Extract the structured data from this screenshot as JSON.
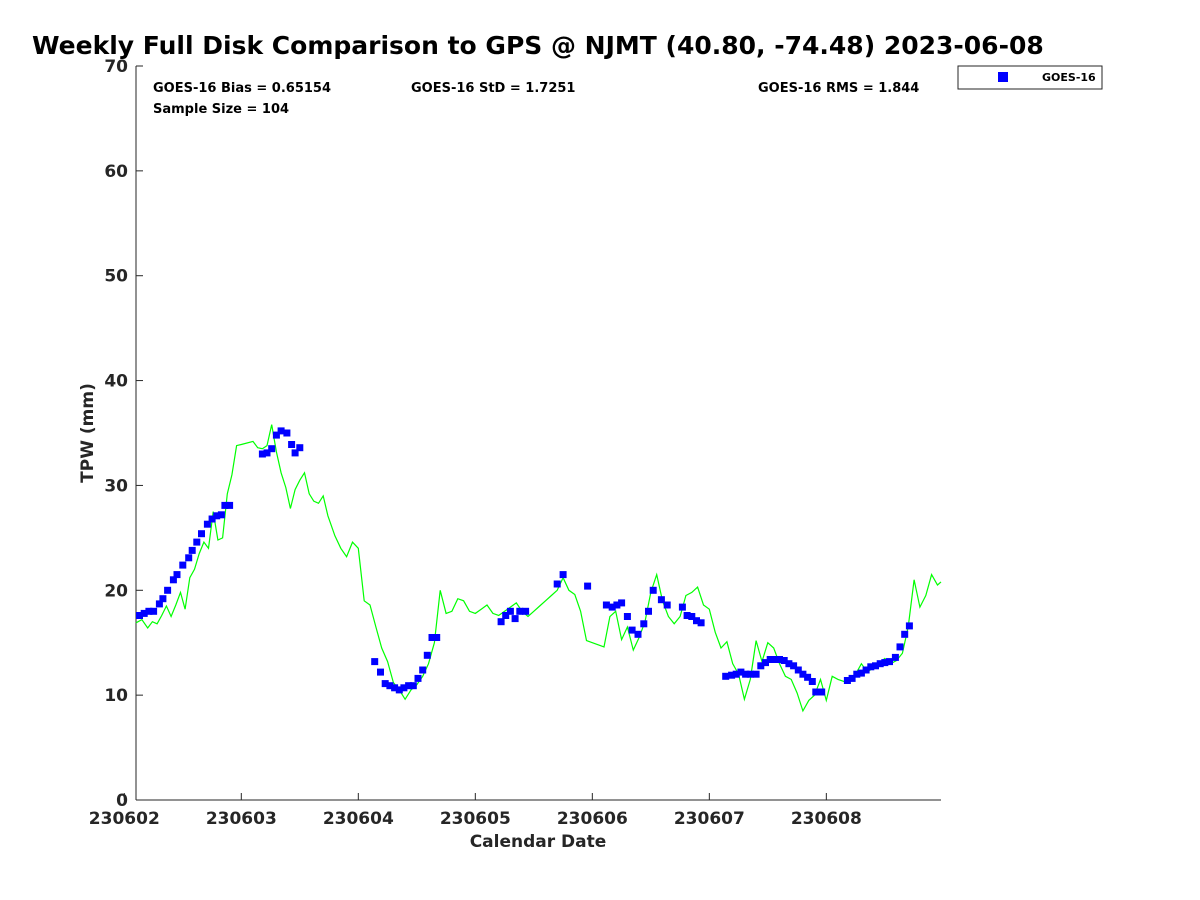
{
  "chart_data": {
    "type": "scatter",
    "title": "Weekly Full Disk Comparison to GPS @ NJMT (40.80, -74.48) 2023-06-08",
    "xlabel": "Calendar Date",
    "ylabel": "TPW (mm)",
    "xlim": [
      230602.1,
      230608.98
    ],
    "ylim": [
      0,
      70
    ],
    "x_ticks": [
      230602,
      230603,
      230604,
      230605,
      230606,
      230607,
      230608
    ],
    "y_ticks": [
      0,
      10,
      20,
      30,
      40,
      50,
      60,
      70
    ],
    "grid": false,
    "legend_position": "top-right",
    "stats": {
      "bias": "GOES-16 Bias = 0.65154",
      "std": "GOES-16 StD = 1.7251",
      "rms": "GOES-16 RMS = 1.844",
      "sample_size": "Sample Size = 104"
    },
    "series": [
      {
        "name": "GOES-16",
        "marker": "square",
        "color": "#0000ff",
        "x": [
          230602.13,
          230602.17,
          230602.21,
          230602.25,
          230602.3,
          230602.33,
          230602.37,
          230602.42,
          230602.45,
          230602.5,
          230602.55,
          230602.58,
          230602.62,
          230602.66,
          230602.71,
          230602.75,
          230602.79,
          230602.83,
          230602.86,
          230602.9,
          230603.18,
          230603.22,
          230603.26,
          230603.3,
          230603.34,
          230603.39,
          230603.43,
          230603.46,
          230603.5,
          230604.14,
          230604.19,
          230604.23,
          230604.27,
          230604.31,
          230604.35,
          230604.39,
          230604.43,
          230604.47,
          230604.51,
          230604.55,
          230604.59,
          230604.63,
          230604.67,
          230605.22,
          230605.26,
          230605.3,
          230605.34,
          230605.38,
          230605.43,
          230605.7,
          230605.75,
          230605.96,
          230606.12,
          230606.17,
          230606.21,
          230606.25,
          230606.3,
          230606.34,
          230606.39,
          230606.44,
          230606.48,
          230606.52,
          230606.59,
          230606.64,
          230606.77,
          230606.81,
          230606.85,
          230606.89,
          230606.93,
          230607.14,
          230607.19,
          230607.23,
          230607.27,
          230607.31,
          230607.35,
          230607.4,
          230607.44,
          230607.48,
          230607.52,
          230607.56,
          230607.6,
          230607.64,
          230607.68,
          230607.72,
          230607.76,
          230607.8,
          230607.84,
          230607.88,
          230607.91,
          230607.96,
          230608.18,
          230608.22,
          230608.26,
          230608.3,
          230608.34,
          230608.38,
          230608.42,
          230608.46,
          230608.5,
          230608.54,
          230608.59,
          230608.63,
          230608.67,
          230608.71
        ],
        "values": [
          17.6,
          17.8,
          18.0,
          18.0,
          18.7,
          19.2,
          20.0,
          21.0,
          21.5,
          22.4,
          23.1,
          23.8,
          24.6,
          25.4,
          26.3,
          26.8,
          27.1,
          27.2,
          28.1,
          28.1,
          33.0,
          33.1,
          33.5,
          34.8,
          35.2,
          35.0,
          33.9,
          33.1,
          33.6,
          13.2,
          12.2,
          11.1,
          10.9,
          10.7,
          10.5,
          10.7,
          10.9,
          10.9,
          11.6,
          12.4,
          13.8,
          15.5,
          15.5,
          17.0,
          17.6,
          18.0,
          17.3,
          18.0,
          18.0,
          20.6,
          21.5,
          20.4,
          18.6,
          18.4,
          18.6,
          18.8,
          17.5,
          16.2,
          15.8,
          16.8,
          18.0,
          20.0,
          19.1,
          18.6,
          18.4,
          17.6,
          17.5,
          17.1,
          16.9,
          11.8,
          11.9,
          12.0,
          12.2,
          12.0,
          12.0,
          12.0,
          12.8,
          13.1,
          13.4,
          13.4,
          13.4,
          13.3,
          13.0,
          12.8,
          12.4,
          12.0,
          11.7,
          11.3,
          10.3,
          10.3,
          11.4,
          11.6,
          12.0,
          12.1,
          12.4,
          12.7,
          12.8,
          13.0,
          13.1,
          13.2,
          13.6,
          14.6,
          15.8,
          16.6
        ]
      },
      {
        "name": "",
        "marker": "line",
        "color": "#00ff00",
        "x": [
          230602.1,
          230602.15,
          230602.2,
          230602.24,
          230602.28,
          230602.32,
          230602.36,
          230602.4,
          230602.44,
          230602.48,
          230602.52,
          230602.56,
          230602.6,
          230602.64,
          230602.68,
          230602.72,
          230602.76,
          230602.8,
          230602.84,
          230602.88,
          230602.92,
          230602.96,
          230603.0,
          230603.1,
          230603.14,
          230603.18,
          230603.22,
          230603.26,
          230603.3,
          230603.34,
          230603.38,
          230603.42,
          230603.46,
          230603.5,
          230603.54,
          230603.58,
          230603.62,
          230603.66,
          230603.7,
          230603.74,
          230603.8,
          230603.85,
          230603.9,
          230603.95,
          230604.0,
          230604.05,
          230604.1,
          230604.15,
          230604.2,
          230604.25,
          230604.3,
          230604.35,
          230604.4,
          230604.45,
          230604.5,
          230604.55,
          230604.6,
          230604.65,
          230604.7,
          230604.75,
          230604.8,
          230604.85,
          230604.9,
          230604.95,
          230605.0,
          230605.05,
          230605.1,
          230605.15,
          230605.2,
          230605.25,
          230605.3,
          230605.35,
          230605.4,
          230605.45,
          230605.5,
          230605.55,
          230605.6,
          230605.65,
          230605.7,
          230605.75,
          230605.8,
          230605.85,
          230605.9,
          230605.95,
          230606.0,
          230606.05,
          230606.1,
          230606.15,
          230606.2,
          230606.25,
          230606.3,
          230606.35,
          230606.4,
          230606.45,
          230606.5,
          230606.55,
          230606.6,
          230606.65,
          230606.7,
          230606.75,
          230606.8,
          230606.85,
          230606.9,
          230606.95,
          230607.0,
          230607.05,
          230607.1,
          230607.15,
          230607.2,
          230607.25,
          230607.3,
          230607.35,
          230607.4,
          230607.45,
          230607.5,
          230607.55,
          230607.6,
          230607.65,
          230607.7,
          230607.75,
          230607.8,
          230607.85,
          230607.9,
          230607.95,
          230608.0,
          230608.05,
          230608.1,
          230608.15,
          230608.2,
          230608.25,
          230608.3,
          230608.35,
          230608.4,
          230608.45,
          230608.5,
          230608.55,
          230608.6,
          230608.65,
          230608.7,
          230608.75,
          230608.8,
          230608.85,
          230608.9,
          230608.95,
          230608.98
        ],
        "values": [
          16.9,
          17.2,
          16.4,
          17.0,
          16.8,
          17.6,
          18.5,
          17.5,
          18.6,
          19.8,
          18.2,
          21.2,
          22.0,
          23.5,
          24.6,
          24.0,
          27.5,
          24.8,
          25.0,
          29.2,
          31.0,
          33.8,
          33.9,
          34.2,
          33.6,
          33.5,
          33.8,
          35.8,
          33.2,
          31.2,
          29.8,
          27.8,
          29.6,
          30.5,
          31.2,
          29.2,
          28.5,
          28.3,
          29.0,
          27.1,
          25.2,
          24.0,
          23.2,
          24.6,
          24.0,
          19.0,
          18.6,
          16.5,
          14.5,
          13.2,
          11.2,
          10.5,
          9.6,
          10.5,
          11.0,
          11.8,
          13.0,
          15.0,
          20.0,
          17.8,
          18.0,
          19.2,
          19.0,
          18.0,
          17.8,
          18.2,
          18.6,
          17.8,
          17.6,
          18.0,
          18.4,
          18.8,
          18.0,
          17.5,
          18.0,
          18.5,
          19.0,
          19.5,
          20.0,
          21.2,
          20.0,
          19.6,
          18.0,
          15.2,
          15.0,
          14.8,
          14.6,
          17.5,
          18.0,
          15.3,
          16.5,
          14.3,
          15.5,
          17.0,
          19.8,
          21.5,
          19.0,
          17.5,
          16.8,
          17.5,
          19.5,
          19.8,
          20.3,
          18.6,
          18.2,
          16.0,
          14.5,
          15.1,
          13.0,
          12.0,
          9.6,
          11.5,
          15.2,
          13.2,
          15.0,
          14.5,
          13.0,
          11.8,
          11.5,
          10.2,
          8.5,
          9.5,
          10.0,
          11.5,
          9.5,
          11.8,
          11.5,
          11.3,
          11.6,
          12.0,
          13.0,
          12.2,
          12.6,
          13.0,
          13.5,
          13.0,
          13.3,
          14.0,
          16.5,
          21.0,
          18.4,
          19.5,
          21.5,
          20.5,
          20.8
        ]
      }
    ]
  }
}
